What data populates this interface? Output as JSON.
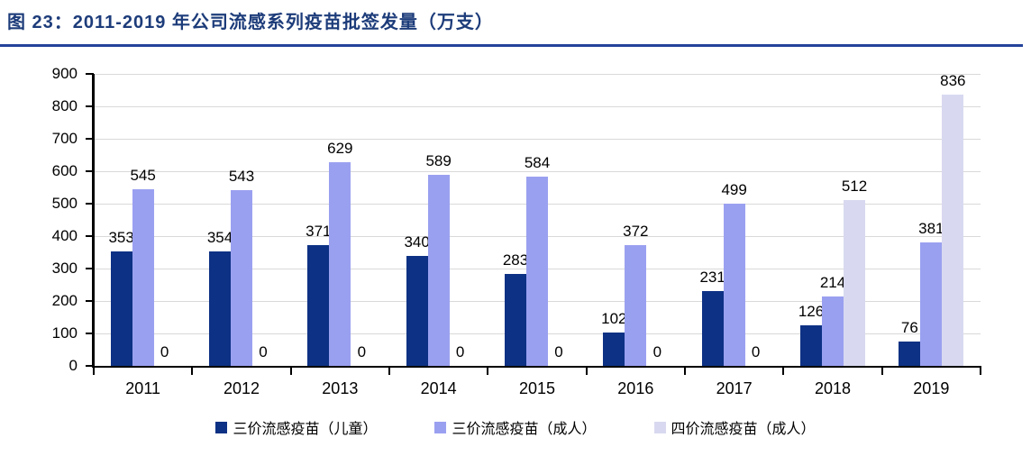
{
  "figure": {
    "title": "图 23：2011-2019 年公司流感系列疫苗批签发量（万支）"
  },
  "colors": {
    "title_text": "#1d3c7a",
    "title_underline": "#24439b",
    "gridline": "#d9d9d9",
    "axis": "#000000",
    "series": [
      "#0d3184",
      "#9aa0f0",
      "#d8d9f0"
    ]
  },
  "chart_data": {
    "type": "bar",
    "title": "图 23：2011-2019 年公司流感系列疫苗批签发量（万支）",
    "categories": [
      "2011",
      "2012",
      "2013",
      "2014",
      "2015",
      "2016",
      "2017",
      "2018",
      "2019"
    ],
    "series": [
      {
        "name": "三价流感疫苗（儿童）",
        "color": "#0d3184",
        "values": [
          353,
          354,
          371,
          340,
          283,
          102,
          231,
          126,
          76
        ]
      },
      {
        "name": "三价流感疫苗（成人）",
        "color": "#9aa0f0",
        "values": [
          545,
          543,
          629,
          589,
          584,
          372,
          499,
          214,
          381
        ]
      },
      {
        "name": "四价流感疫苗（成人）",
        "color": "#d8d9f0",
        "values": [
          0,
          0,
          0,
          0,
          0,
          0,
          0,
          512,
          836
        ]
      }
    ],
    "ylim": [
      0,
      900
    ],
    "ytick_interval": 100,
    "yticks": [
      "0",
      "100",
      "200",
      "300",
      "400",
      "500",
      "600",
      "700",
      "800",
      "900"
    ],
    "grid": true,
    "legend_position": "bottom",
    "data_labels": true,
    "xlabel": "",
    "ylabel": ""
  }
}
